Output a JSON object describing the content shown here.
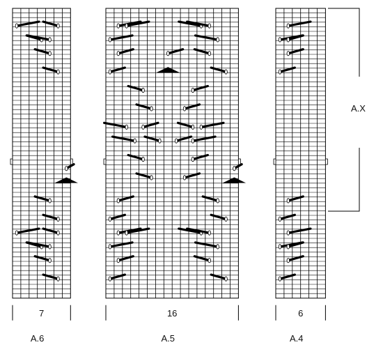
{
  "charts": [
    {
      "name": "A.6",
      "stitches": "7",
      "cols": 7,
      "motifs": [
        {
          "type": "cable",
          "row": 3,
          "col": 0,
          "dir": "R",
          "span": 3
        },
        {
          "type": "cable",
          "row": 3,
          "col": 5,
          "dir": "L",
          "span": 2
        },
        {
          "type": "cable",
          "row": 6,
          "col": 3,
          "dir": "L",
          "span": 2
        },
        {
          "type": "cable",
          "row": 6,
          "col": 4,
          "dir": "L",
          "span": 3
        },
        {
          "type": "cable",
          "row": 9,
          "col": 4,
          "dir": "L",
          "span": 2
        },
        {
          "type": "cable",
          "row": 13,
          "col": 5,
          "dir": "L",
          "span": 2
        },
        {
          "type": "cable",
          "row": 34,
          "col": 6,
          "dir": "R",
          "span": 1
        },
        {
          "type": "arrow",
          "row": 37,
          "col": 6,
          "dir": "L"
        },
        {
          "type": "cable",
          "row": 41,
          "col": 4,
          "dir": "L",
          "span": 2
        },
        {
          "type": "cable",
          "row": 45,
          "col": 5,
          "dir": "L",
          "span": 2
        },
        {
          "type": "cable",
          "row": 48,
          "col": 0,
          "dir": "R",
          "span": 3
        },
        {
          "type": "cable",
          "row": 48,
          "col": 5,
          "dir": "L",
          "span": 2
        },
        {
          "type": "cable",
          "row": 51,
          "col": 3,
          "dir": "L",
          "span": 2
        },
        {
          "type": "cable",
          "row": 51,
          "col": 4,
          "dir": "L",
          "span": 3
        },
        {
          "type": "cable",
          "row": 54,
          "col": 4,
          "dir": "L",
          "span": 2
        },
        {
          "type": "cable",
          "row": 58,
          "col": 5,
          "dir": "L",
          "span": 2
        }
      ]
    },
    {
      "name": "A.5",
      "stitches": "16",
      "cols": 16,
      "motifs": [
        {
          "type": "cable",
          "row": 3,
          "col": 1,
          "dir": "R",
          "span": 3
        },
        {
          "type": "cable",
          "row": 3,
          "col": 2,
          "dir": "R",
          "span": 3
        },
        {
          "type": "cable",
          "row": 3,
          "col": 11,
          "dir": "L",
          "span": 3
        },
        {
          "type": "cable",
          "row": 3,
          "col": 12,
          "dir": "L",
          "span": 3
        },
        {
          "type": "cable",
          "row": 6,
          "col": 0,
          "dir": "R",
          "span": 3
        },
        {
          "type": "cable",
          "row": 6,
          "col": 13,
          "dir": "L",
          "span": 3
        },
        {
          "type": "cable",
          "row": 9,
          "col": 1,
          "dir": "R",
          "span": 2
        },
        {
          "type": "cable",
          "row": 9,
          "col": 7,
          "dir": "R",
          "span": 2
        },
        {
          "type": "cable",
          "row": 9,
          "col": 12,
          "dir": "L",
          "span": 2
        },
        {
          "type": "arrow",
          "row": 13,
          "col": 7,
          "dir": "R"
        },
        {
          "type": "cable",
          "row": 13,
          "col": 0,
          "dir": "R",
          "span": 2
        },
        {
          "type": "cable",
          "row": 13,
          "col": 14,
          "dir": "L",
          "span": 2
        },
        {
          "type": "cable",
          "row": 17,
          "col": 4,
          "dir": "L",
          "span": 2
        },
        {
          "type": "cable",
          "row": 17,
          "col": 10,
          "dir": "R",
          "span": 2
        },
        {
          "type": "cable",
          "row": 21,
          "col": 5,
          "dir": "L",
          "span": 2
        },
        {
          "type": "cable",
          "row": 21,
          "col": 9,
          "dir": "R",
          "span": 2
        },
        {
          "type": "cable",
          "row": 25,
          "col": 2,
          "dir": "L",
          "span": 3
        },
        {
          "type": "cable",
          "row": 25,
          "col": 4,
          "dir": "R",
          "span": 2
        },
        {
          "type": "cable",
          "row": 25,
          "col": 10,
          "dir": "L",
          "span": 2
        },
        {
          "type": "cable",
          "row": 25,
          "col": 11,
          "dir": "R",
          "span": 3
        },
        {
          "type": "cable",
          "row": 28,
          "col": 3,
          "dir": "L",
          "span": 3
        },
        {
          "type": "cable",
          "row": 28,
          "col": 6,
          "dir": "L",
          "span": 2
        },
        {
          "type": "cable",
          "row": 28,
          "col": 8,
          "dir": "R",
          "span": 2
        },
        {
          "type": "cable",
          "row": 28,
          "col": 10,
          "dir": "R",
          "span": 3
        },
        {
          "type": "cable",
          "row": 32,
          "col": 4,
          "dir": "L",
          "span": 2
        },
        {
          "type": "cable",
          "row": 32,
          "col": 10,
          "dir": "R",
          "span": 2
        },
        {
          "type": "cable",
          "row": 36,
          "col": 5,
          "dir": "L",
          "span": 2
        },
        {
          "type": "cable",
          "row": 36,
          "col": 9,
          "dir": "R",
          "span": 2
        },
        {
          "type": "cable",
          "row": 34,
          "col": 15,
          "dir": "R",
          "span": 1
        },
        {
          "type": "arrow",
          "row": 37,
          "col": 15,
          "dir": "L"
        },
        {
          "type": "cable",
          "row": 41,
          "col": 1,
          "dir": "R",
          "span": 2
        },
        {
          "type": "cable",
          "row": 41,
          "col": 13,
          "dir": "L",
          "span": 2
        },
        {
          "type": "cable",
          "row": 45,
          "col": 0,
          "dir": "R",
          "span": 2
        },
        {
          "type": "cable",
          "row": 45,
          "col": 14,
          "dir": "L",
          "span": 2
        },
        {
          "type": "cable",
          "row": 48,
          "col": 1,
          "dir": "R",
          "span": 3
        },
        {
          "type": "cable",
          "row": 48,
          "col": 2,
          "dir": "R",
          "span": 3
        },
        {
          "type": "cable",
          "row": 48,
          "col": 11,
          "dir": "L",
          "span": 3
        },
        {
          "type": "cable",
          "row": 48,
          "col": 12,
          "dir": "L",
          "span": 3
        },
        {
          "type": "cable",
          "row": 51,
          "col": 0,
          "dir": "R",
          "span": 3
        },
        {
          "type": "cable",
          "row": 51,
          "col": 13,
          "dir": "L",
          "span": 3
        },
        {
          "type": "cable",
          "row": 54,
          "col": 1,
          "dir": "R",
          "span": 2
        },
        {
          "type": "cable",
          "row": 54,
          "col": 12,
          "dir": "L",
          "span": 2
        },
        {
          "type": "cable",
          "row": 58,
          "col": 0,
          "dir": "R",
          "span": 2
        },
        {
          "type": "cable",
          "row": 58,
          "col": 14,
          "dir": "L",
          "span": 2
        }
      ]
    },
    {
      "name": "A.4",
      "stitches": "6",
      "cols": 6,
      "motifs": [
        {
          "type": "cable",
          "row": 3,
          "col": 1,
          "dir": "R",
          "span": 3
        },
        {
          "type": "cable",
          "row": 6,
          "col": 0,
          "dir": "R",
          "span": 3
        },
        {
          "type": "cable",
          "row": 6,
          "col": 1,
          "dir": "R",
          "span": 2
        },
        {
          "type": "cable",
          "row": 9,
          "col": 1,
          "dir": "R",
          "span": 2
        },
        {
          "type": "cable",
          "row": 13,
          "col": 0,
          "dir": "R",
          "span": 2
        },
        {
          "type": "cable",
          "row": 41,
          "col": 1,
          "dir": "R",
          "span": 2
        },
        {
          "type": "cable",
          "row": 45,
          "col": 0,
          "dir": "R",
          "span": 2
        },
        {
          "type": "cable",
          "row": 48,
          "col": 1,
          "dir": "R",
          "span": 3
        },
        {
          "type": "cable",
          "row": 51,
          "col": 0,
          "dir": "R",
          "span": 3
        },
        {
          "type": "cable",
          "row": 51,
          "col": 1,
          "dir": "R",
          "span": 2
        },
        {
          "type": "cable",
          "row": 54,
          "col": 1,
          "dir": "R",
          "span": 2
        },
        {
          "type": "cable",
          "row": 58,
          "col": 0,
          "dir": "R",
          "span": 2
        }
      ]
    }
  ],
  "repeat_bracket": {
    "label": "A.X"
  }
}
